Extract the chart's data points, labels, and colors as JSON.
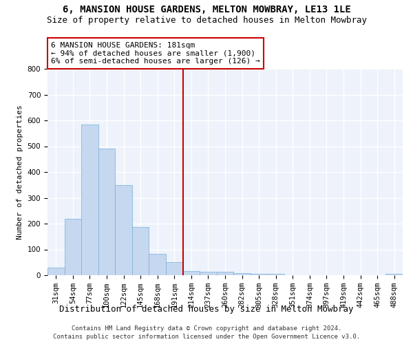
{
  "title": "6, MANSION HOUSE GARDENS, MELTON MOWBRAY, LE13 1LE",
  "subtitle": "Size of property relative to detached houses in Melton Mowbray",
  "xlabel": "Distribution of detached houses by size in Melton Mowbray",
  "ylabel": "Number of detached properties",
  "categories": [
    "31sqm",
    "54sqm",
    "77sqm",
    "100sqm",
    "122sqm",
    "145sqm",
    "168sqm",
    "191sqm",
    "214sqm",
    "237sqm",
    "260sqm",
    "282sqm",
    "305sqm",
    "328sqm",
    "351sqm",
    "374sqm",
    "397sqm",
    "419sqm",
    "442sqm",
    "465sqm",
    "488sqm"
  ],
  "values": [
    30,
    218,
    585,
    490,
    350,
    188,
    83,
    52,
    16,
    13,
    13,
    7,
    5,
    5,
    0,
    0,
    0,
    0,
    0,
    0,
    5
  ],
  "bar_color": "#c5d8f0",
  "bar_edge_color": "#7aadd4",
  "vline_x": 7.5,
  "vline_color": "#cc0000",
  "annotation_line1": "6 MANSION HOUSE GARDENS: 181sqm",
  "annotation_line2": "← 94% of detached houses are smaller (1,900)",
  "annotation_line3": "6% of semi-detached houses are larger (126) →",
  "annotation_box_color": "#ffffff",
  "annotation_box_edge": "#cc0000",
  "ylim": [
    0,
    800
  ],
  "yticks": [
    0,
    100,
    200,
    300,
    400,
    500,
    600,
    700,
    800
  ],
  "footer_line1": "Contains HM Land Registry data © Crown copyright and database right 2024.",
  "footer_line2": "Contains public sector information licensed under the Open Government Licence v3.0.",
  "background_color": "#edf2fb",
  "grid_color": "#ffffff",
  "title_fontsize": 10,
  "subtitle_fontsize": 9,
  "xlabel_fontsize": 9,
  "ylabel_fontsize": 8,
  "annotation_fontsize": 8,
  "tick_fontsize": 7.5,
  "footer_fontsize": 6.5
}
